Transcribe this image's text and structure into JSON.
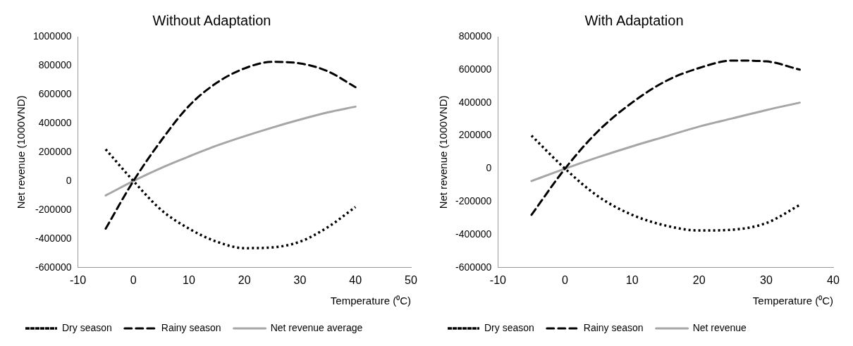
{
  "chart_data": [
    {
      "type": "line",
      "title": "Without Adaptation",
      "xlabel": "Temperature (⁰C)",
      "ylabel": "Net revenue (1000VND)",
      "xlim": [
        -10,
        50
      ],
      "xticks": [
        -10,
        0,
        10,
        20,
        30,
        40,
        50
      ],
      "ylim": [
        -600000,
        1000000
      ],
      "yticks": [
        -600000,
        -400000,
        -200000,
        0,
        200000,
        400000,
        600000,
        800000,
        1000000
      ],
      "x": [
        -5,
        0,
        5,
        10,
        15,
        20,
        25,
        30,
        35,
        40
      ],
      "grid": false,
      "legend": "bottom",
      "marker": "none",
      "series": [
        {
          "name": "Dry season",
          "color": "#000000",
          "line_style": "dotted",
          "values": [
            220000,
            0,
            -200000,
            -330000,
            -420000,
            -465000,
            -460000,
            -420000,
            -320000,
            -180000
          ]
        },
        {
          "name": "Rainy season",
          "color": "#000000",
          "line_style": "dashed",
          "values": [
            -330000,
            0,
            280000,
            520000,
            680000,
            780000,
            825000,
            815000,
            760000,
            650000
          ]
        },
        {
          "name": "Net revenue average",
          "color": "#a6a6a6",
          "line_style": "solid",
          "values": [
            -100000,
            0,
            90000,
            170000,
            245000,
            310000,
            370000,
            425000,
            475000,
            515000
          ]
        }
      ]
    },
    {
      "type": "line",
      "title": "With Adaptation",
      "xlabel": "Temperature (⁰C)",
      "ylabel": "Net revenue (1000VND)",
      "xlim": [
        -10,
        40
      ],
      "xticks": [
        -10,
        0,
        10,
        20,
        30,
        40
      ],
      "ylim": [
        -600000,
        800000
      ],
      "yticks": [
        -600000,
        -400000,
        -200000,
        0,
        200000,
        400000,
        600000,
        800000
      ],
      "x": [
        -5,
        0,
        5,
        10,
        15,
        20,
        25,
        30,
        35
      ],
      "grid": false,
      "legend": "bottom",
      "marker": "none",
      "series": [
        {
          "name": "Dry season",
          "color": "#000000",
          "line_style": "dotted",
          "values": [
            200000,
            0,
            -170000,
            -280000,
            -345000,
            -375000,
            -370000,
            -330000,
            -220000
          ]
        },
        {
          "name": "Rainy season",
          "color": "#000000",
          "line_style": "dashed",
          "values": [
            -280000,
            0,
            230000,
            400000,
            530000,
            610000,
            655000,
            650000,
            600000
          ]
        },
        {
          "name": "Net revenue",
          "color": "#a6a6a6",
          "line_style": "solid",
          "values": [
            -75000,
            0,
            70000,
            135000,
            195000,
            255000,
            305000,
            355000,
            400000
          ]
        }
      ]
    }
  ]
}
